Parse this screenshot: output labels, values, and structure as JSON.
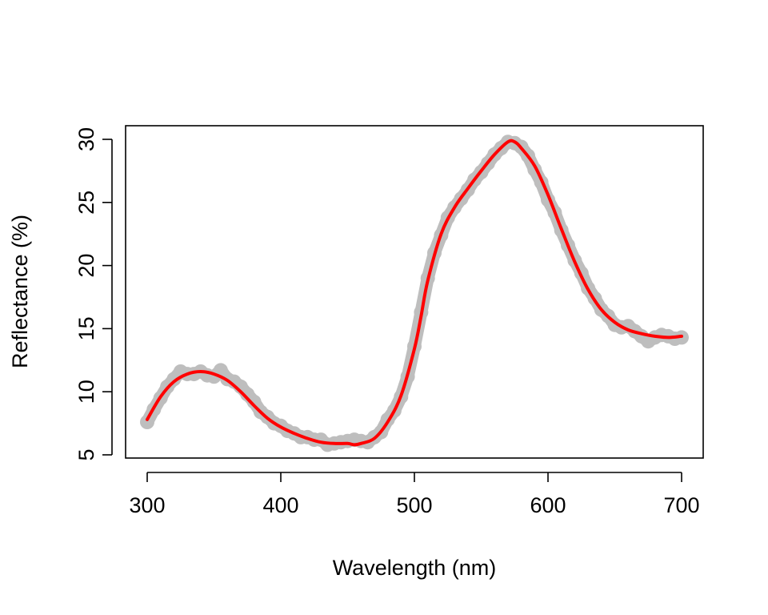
{
  "chart_data": {
    "type": "line",
    "title": "",
    "xlabel": "Wavelength (nm)",
    "ylabel": "Reflectance (%)",
    "xlim": [
      300,
      700
    ],
    "ylim": [
      5,
      30
    ],
    "x_ticks": [
      300,
      400,
      500,
      600,
      700
    ],
    "y_ticks": [
      5,
      10,
      15,
      20,
      25,
      30
    ],
    "x_tick_labels": [
      "300",
      "400",
      "500",
      "600",
      "700"
    ],
    "y_tick_labels": [
      "5",
      "10",
      "15",
      "20",
      "25",
      "30"
    ],
    "grid": false,
    "legend": "none",
    "series": [
      {
        "role": "raw",
        "color": "#bebebe",
        "style": "points",
        "points": [
          [
            300,
            7.6
          ],
          [
            305,
            8.6
          ],
          [
            310,
            9.5
          ],
          [
            315,
            10.4
          ],
          [
            320,
            11.0
          ],
          [
            325,
            11.6
          ],
          [
            330,
            11.4
          ],
          [
            335,
            11.4
          ],
          [
            340,
            11.6
          ],
          [
            345,
            11.3
          ],
          [
            350,
            11.2
          ],
          [
            355,
            11.7
          ],
          [
            360,
            11.0
          ],
          [
            365,
            10.8
          ],
          [
            370,
            10.4
          ],
          [
            375,
            9.8
          ],
          [
            380,
            9.2
          ],
          [
            385,
            8.4
          ],
          [
            390,
            8.0
          ],
          [
            395,
            7.5
          ],
          [
            400,
            7.3
          ],
          [
            405,
            6.9
          ],
          [
            410,
            6.7
          ],
          [
            415,
            6.4
          ],
          [
            420,
            6.4
          ],
          [
            425,
            6.2
          ],
          [
            430,
            6.2
          ],
          [
            435,
            5.8
          ],
          [
            440,
            5.9
          ],
          [
            445,
            6.0
          ],
          [
            450,
            6.1
          ],
          [
            455,
            6.2
          ],
          [
            460,
            6.1
          ],
          [
            465,
            6.0
          ],
          [
            470,
            6.4
          ],
          [
            475,
            6.8
          ],
          [
            480,
            7.8
          ],
          [
            485,
            8.5
          ],
          [
            490,
            9.6
          ],
          [
            495,
            11.2
          ],
          [
            500,
            13.6
          ],
          [
            505,
            16.3
          ],
          [
            510,
            19.0
          ],
          [
            515,
            21.0
          ],
          [
            520,
            22.4
          ],
          [
            525,
            23.8
          ],
          [
            530,
            24.6
          ],
          [
            535,
            25.3
          ],
          [
            540,
            26.0
          ],
          [
            545,
            26.8
          ],
          [
            550,
            27.4
          ],
          [
            555,
            28.1
          ],
          [
            560,
            28.8
          ],
          [
            565,
            29.3
          ],
          [
            570,
            29.8
          ],
          [
            575,
            29.7
          ],
          [
            580,
            29.4
          ],
          [
            585,
            28.7
          ],
          [
            590,
            27.6
          ],
          [
            595,
            26.6
          ],
          [
            600,
            25.2
          ],
          [
            605,
            24.2
          ],
          [
            610,
            22.8
          ],
          [
            615,
            21.6
          ],
          [
            620,
            20.4
          ],
          [
            625,
            19.4
          ],
          [
            630,
            18.2
          ],
          [
            635,
            17.4
          ],
          [
            640,
            16.5
          ],
          [
            645,
            16.0
          ],
          [
            650,
            15.3
          ],
          [
            655,
            15.1
          ],
          [
            660,
            15.2
          ],
          [
            665,
            14.8
          ],
          [
            670,
            14.4
          ],
          [
            675,
            14.0
          ],
          [
            680,
            14.3
          ],
          [
            685,
            14.5
          ],
          [
            690,
            14.4
          ],
          [
            695,
            14.2
          ],
          [
            700,
            14.3
          ]
        ]
      },
      {
        "role": "smoothed",
        "color": "#ff0000",
        "style": "line",
        "points": [
          [
            300,
            7.8
          ],
          [
            310,
            9.6
          ],
          [
            320,
            10.8
          ],
          [
            330,
            11.4
          ],
          [
            340,
            11.6
          ],
          [
            350,
            11.4
          ],
          [
            360,
            10.9
          ],
          [
            370,
            10.0
          ],
          [
            380,
            8.9
          ],
          [
            390,
            7.9
          ],
          [
            400,
            7.2
          ],
          [
            410,
            6.7
          ],
          [
            420,
            6.3
          ],
          [
            430,
            6.0
          ],
          [
            440,
            5.9
          ],
          [
            450,
            5.9
          ],
          [
            455,
            5.8
          ],
          [
            460,
            5.9
          ],
          [
            470,
            6.3
          ],
          [
            480,
            7.6
          ],
          [
            490,
            9.7
          ],
          [
            500,
            13.4
          ],
          [
            505,
            16.0
          ],
          [
            510,
            18.8
          ],
          [
            520,
            22.5
          ],
          [
            530,
            24.6
          ],
          [
            540,
            26.1
          ],
          [
            550,
            27.5
          ],
          [
            560,
            28.8
          ],
          [
            570,
            29.8
          ],
          [
            575,
            29.8
          ],
          [
            580,
            29.3
          ],
          [
            590,
            27.9
          ],
          [
            600,
            25.6
          ],
          [
            610,
            22.9
          ],
          [
            620,
            20.3
          ],
          [
            630,
            18.1
          ],
          [
            640,
            16.5
          ],
          [
            650,
            15.5
          ],
          [
            660,
            14.9
          ],
          [
            670,
            14.6
          ],
          [
            680,
            14.4
          ],
          [
            690,
            14.3
          ],
          [
            700,
            14.4
          ]
        ]
      }
    ]
  }
}
